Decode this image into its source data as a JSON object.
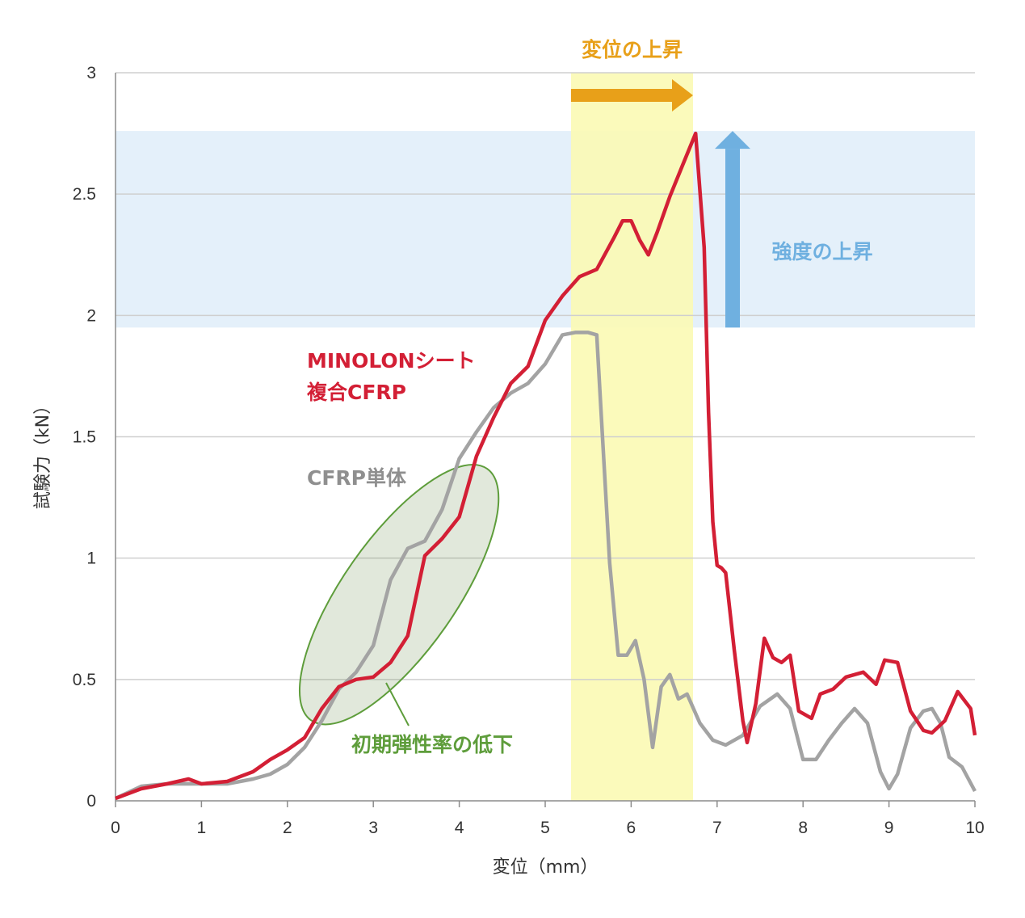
{
  "chart_data": {
    "type": "line",
    "xlabel": "変位（mm）",
    "ylabel": "試験力（kN）",
    "xlim": [
      0,
      10
    ],
    "ylim": [
      0,
      3
    ],
    "x_ticks": [
      "0",
      "1",
      "2",
      "3",
      "4",
      "5",
      "6",
      "7",
      "8",
      "9",
      "10"
    ],
    "y_ticks": [
      "0",
      "0.5",
      "1",
      "1.5",
      "2",
      "2.5",
      "3"
    ],
    "grid": true,
    "colors": {
      "minolon": "#d31f35",
      "cfrp": "#a3a3a3",
      "displacement": "#e8a019",
      "strength": "#6fb0e0",
      "elastic": "#5e9d3b",
      "highlight_yellow": "#fbf9b4",
      "highlight_blue": "#e4f0fa"
    },
    "series": [
      {
        "name": "MINOLONシート\n複合CFRP",
        "name_lines": [
          "MINOLONシート",
          "複合CFRP"
        ],
        "x": [
          0,
          0.3,
          0.6,
          0.85,
          1.0,
          1.3,
          1.6,
          1.8,
          2.0,
          2.2,
          2.4,
          2.6,
          2.8,
          3.0,
          3.2,
          3.4,
          3.6,
          3.8,
          4.0,
          4.2,
          4.4,
          4.6,
          4.8,
          5.0,
          5.2,
          5.4,
          5.6,
          5.8,
          5.9,
          6.0,
          6.1,
          6.2,
          6.3,
          6.45,
          6.6,
          6.75,
          6.85,
          6.9,
          6.95,
          7.0,
          7.05,
          7.1,
          7.2,
          7.3,
          7.35,
          7.45,
          7.55,
          7.65,
          7.75,
          7.85,
          7.95,
          8.1,
          8.2,
          8.35,
          8.5,
          8.7,
          8.85,
          8.95,
          9.1,
          9.25,
          9.4,
          9.5,
          9.65,
          9.8,
          9.95,
          10.0
        ],
        "y": [
          0.01,
          0.05,
          0.07,
          0.09,
          0.07,
          0.08,
          0.12,
          0.17,
          0.21,
          0.26,
          0.38,
          0.47,
          0.5,
          0.51,
          0.57,
          0.68,
          1.01,
          1.08,
          1.17,
          1.42,
          1.58,
          1.72,
          1.79,
          1.98,
          2.08,
          2.16,
          2.19,
          2.32,
          2.39,
          2.39,
          2.31,
          2.25,
          2.34,
          2.49,
          2.62,
          2.75,
          2.28,
          1.6,
          1.15,
          0.97,
          0.96,
          0.94,
          0.62,
          0.33,
          0.24,
          0.4,
          0.67,
          0.59,
          0.57,
          0.6,
          0.37,
          0.34,
          0.44,
          0.46,
          0.51,
          0.53,
          0.48,
          0.58,
          0.57,
          0.37,
          0.29,
          0.28,
          0.33,
          0.45,
          0.38,
          0.27
        ]
      },
      {
        "name": "CFRP単体",
        "name_lines": [
          "CFRP単体"
        ],
        "x": [
          0,
          0.3,
          0.6,
          0.85,
          1.0,
          1.3,
          1.6,
          1.8,
          2.0,
          2.2,
          2.4,
          2.6,
          2.8,
          3.0,
          3.2,
          3.4,
          3.6,
          3.8,
          4.0,
          4.2,
          4.4,
          4.6,
          4.8,
          5.0,
          5.2,
          5.35,
          5.5,
          5.6,
          5.65,
          5.75,
          5.85,
          5.95,
          6.05,
          6.15,
          6.25,
          6.35,
          6.45,
          6.55,
          6.65,
          6.8,
          6.95,
          7.1,
          7.3,
          7.5,
          7.7,
          7.85,
          8.0,
          8.15,
          8.3,
          8.45,
          8.6,
          8.75,
          8.9,
          9.0,
          9.1,
          9.25,
          9.4,
          9.5,
          9.6,
          9.7,
          9.85,
          10.0
        ],
        "y": [
          0.01,
          0.06,
          0.07,
          0.07,
          0.07,
          0.07,
          0.09,
          0.11,
          0.15,
          0.22,
          0.33,
          0.46,
          0.53,
          0.64,
          0.91,
          1.04,
          1.07,
          1.2,
          1.41,
          1.52,
          1.62,
          1.68,
          1.72,
          1.8,
          1.92,
          1.93,
          1.93,
          1.92,
          1.6,
          0.98,
          0.6,
          0.6,
          0.66,
          0.5,
          0.22,
          0.47,
          0.52,
          0.42,
          0.44,
          0.32,
          0.25,
          0.23,
          0.27,
          0.39,
          0.44,
          0.38,
          0.17,
          0.17,
          0.25,
          0.32,
          0.38,
          0.32,
          0.12,
          0.05,
          0.11,
          0.3,
          0.37,
          0.38,
          0.32,
          0.18,
          0.14,
          0.04
        ]
      }
    ],
    "annotations": {
      "displacement": "変位の上昇",
      "strength": "強度の上昇",
      "elastic": "初期弾性率の低下"
    },
    "highlight_displacement_x": [
      5.3,
      6.72
    ],
    "highlight_strength_y": [
      1.95,
      2.76
    ],
    "ellipse_center": [
      3.3,
      0.85
    ],
    "ellipse_radius": [
      1.3,
      0.15
    ]
  }
}
